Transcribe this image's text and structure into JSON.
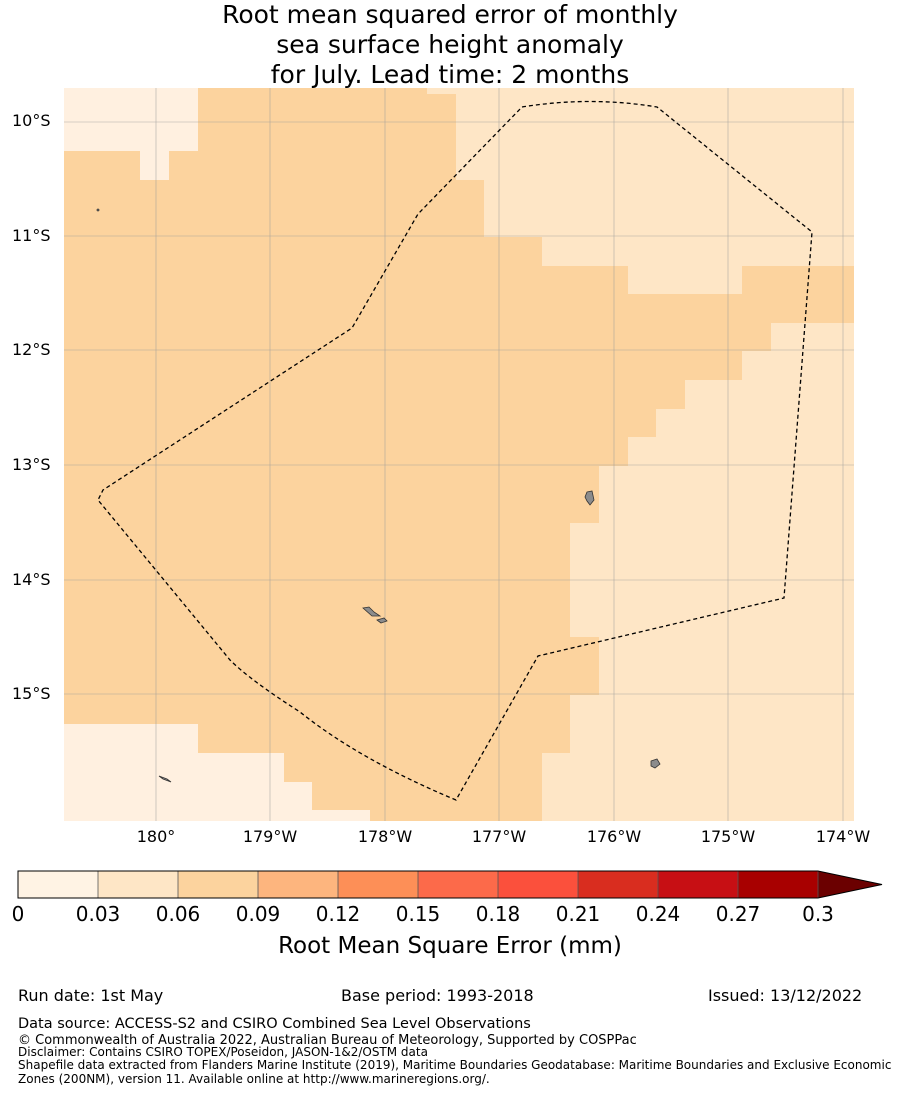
{
  "title": {
    "line1": "Root mean squared error of monthly",
    "line2": "sea surface height anomaly",
    "line3": "for July. Lead time: 2 months"
  },
  "map": {
    "lat_labels": [
      "10°S",
      "11°S",
      "12°S",
      "13°S",
      "14°S",
      "15°S"
    ],
    "lon_labels": [
      "180°",
      "179°W",
      "178°W",
      "177°W",
      "176°W",
      "175°W",
      "174°W"
    ],
    "colors": {
      "lightest": "#fff0e0",
      "light": "#fee6c6",
      "medium": "#fcd39e",
      "land": "#8c8c8c",
      "grid": "#a0a0a0"
    }
  },
  "colorbar": {
    "ticks": [
      "0",
      "0.03",
      "0.06",
      "0.09",
      "0.12",
      "0.15",
      "0.18",
      "0.21",
      "0.24",
      "0.27",
      "0.3"
    ],
    "colors": [
      "#fff3e4",
      "#fee6c6",
      "#fcd39e",
      "#fdb57e",
      "#fd8f57",
      "#fc6a4a",
      "#fb503c",
      "#d92d1f",
      "#c70f14",
      "#a80000",
      "#6b0000"
    ],
    "label": "Root Mean Square Error (mm)"
  },
  "footer": {
    "run_date": "Run date: 1st May",
    "base_period": "Base period: 1993-2018",
    "issued": "Issued: 13/12/2022",
    "data_source": "Data source: ACCESS-S2 and CSIRO Combined Sea Level Observations",
    "copyright": "© Commonwealth of Australia 2022, Australian Bureau of Meteorology, Supported by COSPPac",
    "disclaimer": "Disclaimer: Contains CSIRO TOPEX/Poseidon, JASON-1&2/OSTM data",
    "shapefile_1": "Shapefile data extracted from Flanders Marine Institute (2019), Maritime Boundaries Geodatabase: Maritime Boundaries and Exclusive Economic",
    "shapefile_2": "Zones (200NM), version 11. Available online at http://www.marineregions.org/."
  }
}
